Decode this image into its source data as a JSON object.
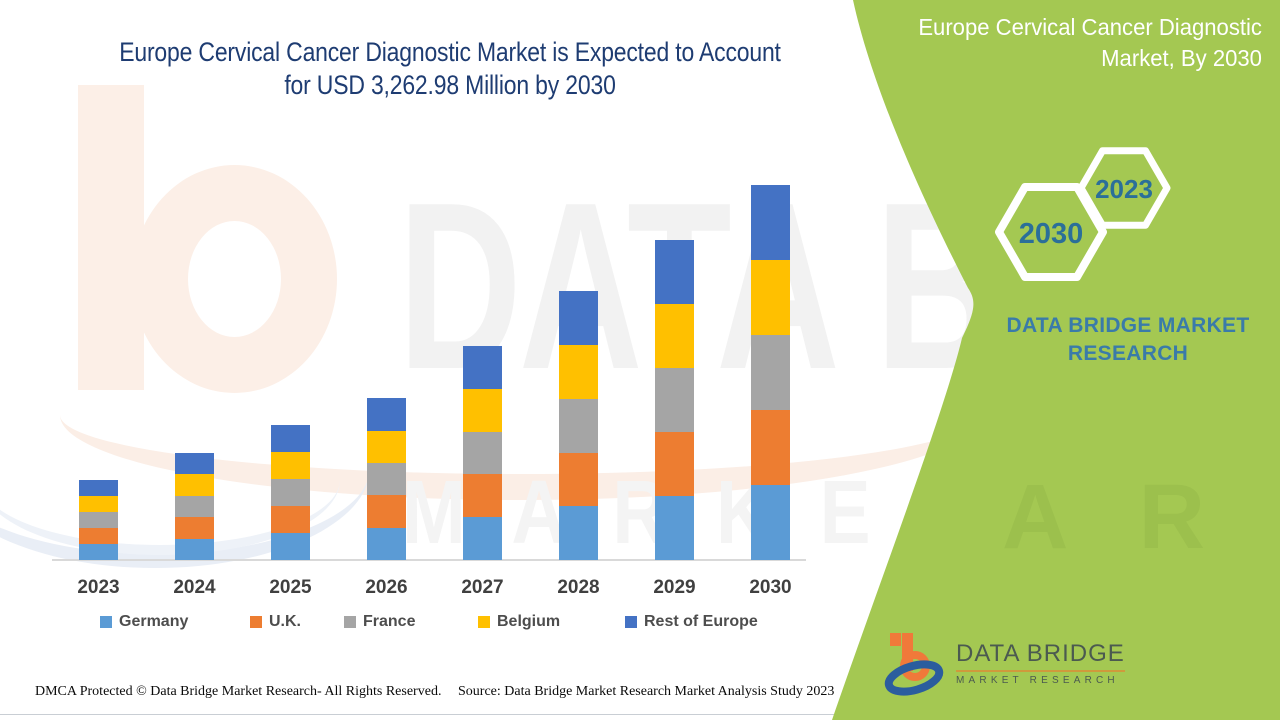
{
  "header": {
    "title_line1": "Europe Cervical Cancer Diagnostic Market is Expected to Account",
    "title_line2": "for USD 3,262.98 Million by 2030"
  },
  "right_panel": {
    "title_line1": "Europe Cervical Cancer Diagnostic",
    "title_line2": "Market, By 2030",
    "hexagons": [
      {
        "label": "2030"
      },
      {
        "label": "2023"
      }
    ],
    "brand_text": "DATA BRIDGE MARKET RESEARCH",
    "logo": {
      "name_line": "DATA BRIDGE",
      "sub_line": "MARKET RESEARCH"
    }
  },
  "watermark": {
    "line1": "DATA B",
    "line2": "M A R K E T  R E",
    "green_letters": "A R C H"
  },
  "footer": {
    "dmca": "DMCA Protected © Data Bridge Market Research- All Rights Reserved.",
    "source": "Source: Data Bridge Market Research Market Analysis Study 2023"
  },
  "colors": {
    "panel_green": "#a4c852",
    "title_navy": "#1e3c72",
    "hexagon_text_blue": "#2b6f99",
    "brand_text_blue": "#3a7ba9",
    "logo_orange": "#f0793a",
    "logo_blue": "#2b5d9e"
  },
  "chart_data": {
    "type": "bar",
    "stacked": true,
    "title": "Europe Cervical Cancer Diagnostic Market is Expected to Account for USD 3,262.98 Million by 2030",
    "xlabel": "",
    "ylabel": "",
    "unit": "USD Million",
    "y_axis_visible": false,
    "grid": false,
    "legend_position": "bottom",
    "categories": [
      "2023",
      "2024",
      "2025",
      "2026",
      "2027",
      "2028",
      "2029",
      "2030"
    ],
    "series": [
      {
        "name": "Germany",
        "color": "#5B9BD5",
        "values": [
          139.2,
          186.2,
          235.6,
          281.4,
          372.4,
          467.4,
          556.8,
          652.6
        ]
      },
      {
        "name": "U.K.",
        "color": "#ED7D31",
        "values": [
          139.2,
          186.2,
          235.6,
          281.4,
          372.4,
          467.4,
          556.8,
          652.6
        ]
      },
      {
        "name": "France",
        "color": "#A5A5A5",
        "values": [
          139.2,
          186.2,
          235.6,
          281.4,
          372.4,
          467.4,
          556.8,
          652.6
        ]
      },
      {
        "name": "Belgium",
        "color": "#FFC000",
        "values": [
          139.2,
          186.2,
          235.6,
          281.4,
          372.4,
          467.4,
          556.8,
          652.6
        ]
      },
      {
        "name": "Rest of Europe",
        "color": "#4472C4",
        "values": [
          139.2,
          186.2,
          235.6,
          281.4,
          372.4,
          467.4,
          556.8,
          652.6
        ]
      }
    ],
    "totals_estimated": [
      696,
      931,
      1178,
      1407,
      1862,
      2337,
      2784,
      3262.98
    ],
    "note": "No value axis shown; per-country values estimated from bar pixel heights (stacks appear evenly split across the five regions); 2030 total stated as USD 3,262.98 Million."
  }
}
